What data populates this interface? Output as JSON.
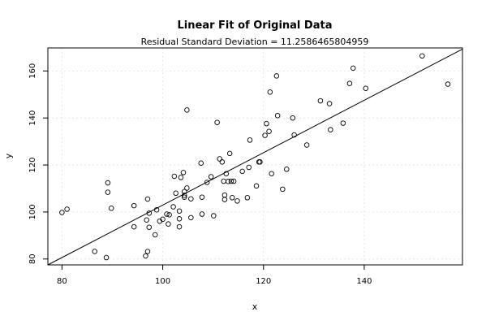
{
  "chart_data": {
    "type": "scatter",
    "title": "Linear Fit of Original Data",
    "subtitle": "Residual Standard Deviation =  11.2586465804959",
    "xlabel": "x",
    "ylabel": "y",
    "xlim": [
      77.2,
      159.5
    ],
    "ylim": [
      77.5,
      169.8
    ],
    "x_ticks": [
      80,
      100,
      120,
      140
    ],
    "y_ticks": [
      80,
      100,
      120,
      140,
      160
    ],
    "grid": true,
    "fit_line": {
      "x": [
        77.2,
        159.5
      ],
      "y": [
        77.5,
        169.3
      ]
    },
    "points": [
      {
        "x": 80.0,
        "y": 99.8
      },
      {
        "x": 81.0,
        "y": 101.2
      },
      {
        "x": 86.5,
        "y": 83.2
      },
      {
        "x": 88.8,
        "y": 80.6
      },
      {
        "x": 89.1,
        "y": 112.4
      },
      {
        "x": 89.1,
        "y": 108.4
      },
      {
        "x": 89.8,
        "y": 101.6
      },
      {
        "x": 94.3,
        "y": 102.7
      },
      {
        "x": 94.3,
        "y": 93.7
      },
      {
        "x": 96.6,
        "y": 81.3
      },
      {
        "x": 96.8,
        "y": 96.6
      },
      {
        "x": 97.0,
        "y": 83.2
      },
      {
        "x": 97.0,
        "y": 105.5
      },
      {
        "x": 97.3,
        "y": 99.5
      },
      {
        "x": 97.3,
        "y": 93.5
      },
      {
        "x": 98.5,
        "y": 90.3
      },
      {
        "x": 98.8,
        "y": 100.9
      },
      {
        "x": 99.4,
        "y": 96.1
      },
      {
        "x": 100.0,
        "y": 96.9
      },
      {
        "x": 100.8,
        "y": 99.1
      },
      {
        "x": 101.1,
        "y": 94.9
      },
      {
        "x": 101.3,
        "y": 98.8
      },
      {
        "x": 102.1,
        "y": 102.2
      },
      {
        "x": 102.3,
        "y": 115.2
      },
      {
        "x": 102.6,
        "y": 108.0
      },
      {
        "x": 103.3,
        "y": 100.4
      },
      {
        "x": 103.3,
        "y": 93.7
      },
      {
        "x": 103.3,
        "y": 97.1
      },
      {
        "x": 103.6,
        "y": 114.7
      },
      {
        "x": 104.1,
        "y": 116.8
      },
      {
        "x": 104.3,
        "y": 108.7
      },
      {
        "x": 104.3,
        "y": 107.1
      },
      {
        "x": 104.3,
        "y": 106.3
      },
      {
        "x": 104.8,
        "y": 110.2
      },
      {
        "x": 104.8,
        "y": 143.4
      },
      {
        "x": 105.6,
        "y": 105.6
      },
      {
        "x": 105.6,
        "y": 97.6
      },
      {
        "x": 107.6,
        "y": 120.8
      },
      {
        "x": 107.8,
        "y": 106.3
      },
      {
        "x": 107.8,
        "y": 99.1
      },
      {
        "x": 108.8,
        "y": 112.6
      },
      {
        "x": 109.6,
        "y": 115.0
      },
      {
        "x": 110.1,
        "y": 98.4
      },
      {
        "x": 110.8,
        "y": 138.1
      },
      {
        "x": 111.3,
        "y": 122.6
      },
      {
        "x": 111.8,
        "y": 121.3
      },
      {
        "x": 112.1,
        "y": 113.1
      },
      {
        "x": 112.3,
        "y": 105.3
      },
      {
        "x": 112.3,
        "y": 107.2
      },
      {
        "x": 112.6,
        "y": 116.3
      },
      {
        "x": 113.0,
        "y": 113.0
      },
      {
        "x": 113.3,
        "y": 124.9
      },
      {
        "x": 113.6,
        "y": 113.1
      },
      {
        "x": 113.8,
        "y": 106.1
      },
      {
        "x": 114.1,
        "y": 113.1
      },
      {
        "x": 114.8,
        "y": 104.7
      },
      {
        "x": 115.8,
        "y": 117.3
      },
      {
        "x": 116.8,
        "y": 106.1
      },
      {
        "x": 117.1,
        "y": 119.0
      },
      {
        "x": 117.3,
        "y": 130.6
      },
      {
        "x": 118.6,
        "y": 111.1
      },
      {
        "x": 119.1,
        "y": 121.3
      },
      {
        "x": 119.3,
        "y": 121.3
      },
      {
        "x": 120.3,
        "y": 132.6
      },
      {
        "x": 120.6,
        "y": 137.6
      },
      {
        "x": 121.1,
        "y": 134.3
      },
      {
        "x": 121.6,
        "y": 116.3
      },
      {
        "x": 121.3,
        "y": 151.0
      },
      {
        "x": 122.6,
        "y": 157.9
      },
      {
        "x": 122.8,
        "y": 141.0
      },
      {
        "x": 123.8,
        "y": 109.7
      },
      {
        "x": 124.6,
        "y": 118.2
      },
      {
        "x": 125.8,
        "y": 140.0
      },
      {
        "x": 126.1,
        "y": 132.8
      },
      {
        "x": 128.6,
        "y": 128.5
      },
      {
        "x": 131.3,
        "y": 147.3
      },
      {
        "x": 133.1,
        "y": 146.1
      },
      {
        "x": 133.3,
        "y": 135.0
      },
      {
        "x": 135.8,
        "y": 137.8
      },
      {
        "x": 137.1,
        "y": 154.7
      },
      {
        "x": 137.8,
        "y": 161.2
      },
      {
        "x": 140.3,
        "y": 152.6
      },
      {
        "x": 151.5,
        "y": 166.4
      },
      {
        "x": 156.6,
        "y": 154.4
      }
    ]
  }
}
